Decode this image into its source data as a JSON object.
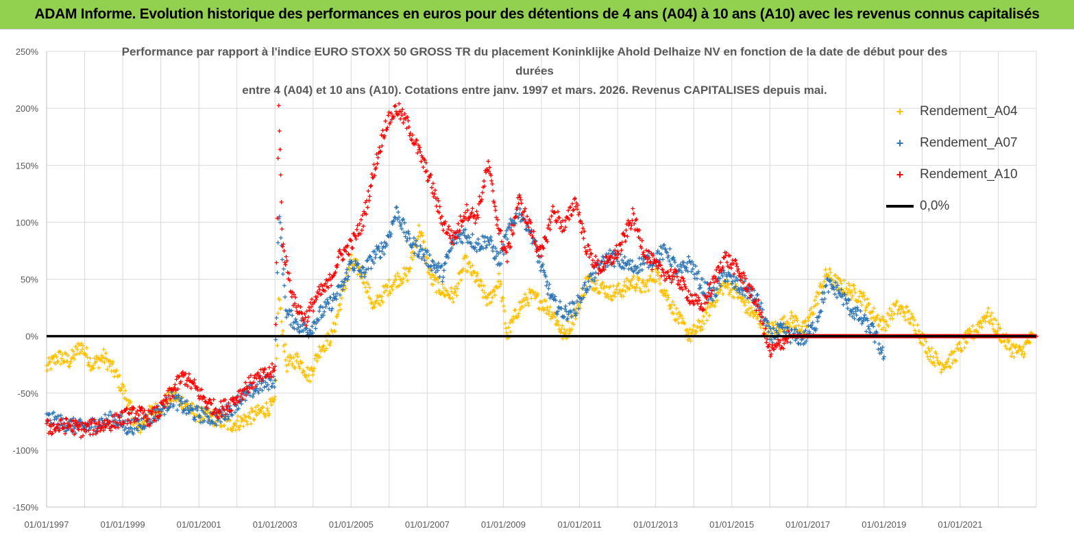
{
  "banner": {
    "title": "ADAM Informe. Evolution historique des performances en euros pour des détentions de 4 ans (A04) à 10 ans (A10) avec les revenus connus capitalisés"
  },
  "colors": {
    "banner_bg": "#92d050",
    "a04": "#ffc000",
    "a07": "#2e75b6",
    "a10": "#ff0000",
    "zero_line": "#000000"
  },
  "chart_data": {
    "type": "scatter",
    "title_lines": [
      "Performance par rapport à l'indice EURO STOXX 50 GROSS TR  du placement Koninklijke Ahold Delhaize NV en  fonction de la date de début pour des durées",
      "entre 4 (A04) et 10 ans (A10). Cotations entre janv. 1997 et mars. 2026. Revenus CAPITALISES depuis mai."
    ],
    "xlabel": "",
    "ylabel": "",
    "xlim": [
      1997.0,
      2023.0
    ],
    "ylim": [
      -150,
      250
    ],
    "y_ticks": [
      250,
      200,
      150,
      100,
      50,
      0,
      -50,
      -100,
      -150
    ],
    "y_tick_labels": [
      "250%",
      "200%",
      "150%",
      "100%",
      "50%",
      "0%",
      "-50%",
      "-100%",
      "-150%"
    ],
    "x_ticks": [
      1997,
      1999,
      2001,
      2003,
      2005,
      2007,
      2009,
      2011,
      2013,
      2015,
      2017,
      2019,
      2021
    ],
    "x_tick_labels": [
      "01/01/1997",
      "01/01/1999",
      "01/01/2001",
      "01/01/2003",
      "01/01/2005",
      "01/01/2007",
      "01/01/2009",
      "01/01/2011",
      "01/01/2013",
      "01/01/2015",
      "01/01/2017",
      "01/01/2019",
      "01/01/2021"
    ],
    "grid": true,
    "legend_position": "right",
    "series": [
      {
        "name": "Rendement_A04",
        "marker": "+",
        "color": "#ffc000",
        "x": [
          1997.0,
          1997.3,
          1997.6,
          1997.9,
          1998.2,
          1998.5,
          1998.8,
          1999.1,
          1999.4,
          1999.7,
          2000.0,
          2000.3,
          2000.6,
          2000.9,
          2001.2,
          2001.5,
          2001.8,
          2002.1,
          2002.4,
          2002.7,
          2003.0,
          2003.1,
          2003.3,
          2003.6,
          2003.9,
          2004.2,
          2004.5,
          2004.8,
          2005.0,
          2005.3,
          2005.6,
          2005.9,
          2006.2,
          2006.5,
          2006.8,
          2007.1,
          2007.4,
          2007.7,
          2008.0,
          2008.3,
          2008.6,
          2008.9,
          2009.1,
          2009.4,
          2009.7,
          2010.0,
          2010.3,
          2010.6,
          2010.9,
          2011.2,
          2011.5,
          2011.8,
          2012.1,
          2012.4,
          2012.7,
          2013.0,
          2013.3,
          2013.6,
          2013.9,
          2014.2,
          2014.5,
          2014.8,
          2015.1,
          2015.4,
          2015.7,
          2016.0,
          2016.3,
          2016.6,
          2016.9,
          2017.2,
          2017.5,
          2017.8,
          2018.1,
          2018.4,
          2018.7,
          2019.0,
          2019.3,
          2019.6,
          2019.9,
          2020.2,
          2020.5,
          2020.8,
          2021.1,
          2021.4,
          2021.7,
          2022.0,
          2022.3,
          2022.6,
          2022.9
        ],
        "values": [
          -28,
          -18,
          -22,
          -8,
          -25,
          -18,
          -32,
          -55,
          -82,
          -68,
          -62,
          -52,
          -58,
          -68,
          -70,
          -73,
          -78,
          -75,
          -70,
          -65,
          -60,
          35,
          -25,
          -20,
          -35,
          -10,
          0,
          40,
          65,
          55,
          25,
          40,
          50,
          55,
          95,
          50,
          40,
          35,
          65,
          50,
          30,
          50,
          0,
          25,
          35,
          30,
          20,
          0,
          20,
          50,
          45,
          38,
          40,
          48,
          42,
          55,
          35,
          15,
          0,
          10,
          30,
          45,
          40,
          25,
          15,
          5,
          10,
          15,
          5,
          30,
          55,
          45,
          40,
          35,
          20,
          10,
          25,
          20,
          5,
          -15,
          -25,
          -20,
          -5,
          5,
          20,
          5,
          -10,
          -15,
          0
        ]
      },
      {
        "name": "Rendement_A07",
        "marker": "+",
        "color": "#2e75b6",
        "x": [
          1997.0,
          1997.3,
          1997.6,
          1997.9,
          1998.2,
          1998.5,
          1998.8,
          1999.1,
          1999.4,
          1999.7,
          2000.0,
          2000.3,
          2000.6,
          2000.9,
          2001.2,
          2001.5,
          2001.8,
          2002.1,
          2002.4,
          2002.7,
          2003.0,
          2003.1,
          2003.3,
          2003.6,
          2003.9,
          2004.2,
          2004.5,
          2004.8,
          2005.0,
          2005.3,
          2005.6,
          2005.9,
          2006.2,
          2006.5,
          2006.8,
          2007.1,
          2007.4,
          2007.7,
          2008.0,
          2008.3,
          2008.6,
          2008.9,
          2009.1,
          2009.4,
          2009.7,
          2010.0,
          2010.3,
          2010.6,
          2010.9,
          2011.2,
          2011.5,
          2011.8,
          2012.1,
          2012.4,
          2012.7,
          2013.0,
          2013.3,
          2013.6,
          2013.9,
          2014.2,
          2014.5,
          2014.8,
          2015.1,
          2015.4,
          2015.7,
          2016.0,
          2016.3,
          2016.6,
          2016.9,
          2017.2,
          2017.5,
          2017.8,
          2018.1,
          2018.4,
          2018.7,
          2019.0
        ],
        "values": [
          -72,
          -75,
          -78,
          -80,
          -78,
          -75,
          -72,
          -80,
          -78,
          -72,
          -65,
          -55,
          -62,
          -68,
          -70,
          -72,
          -65,
          -55,
          -48,
          -42,
          -38,
          110,
          20,
          10,
          5,
          20,
          30,
          45,
          65,
          55,
          70,
          80,
          110,
          85,
          75,
          65,
          55,
          85,
          90,
          80,
          85,
          65,
          90,
          110,
          95,
          60,
          30,
          20,
          25,
          45,
          60,
          70,
          65,
          60,
          65,
          70,
          75,
          55,
          65,
          45,
          35,
          55,
          45,
          40,
          30,
          0,
          5,
          0,
          -2,
          10,
          45,
          40,
          25,
          15,
          5,
          -18
        ]
      },
      {
        "name": "Rendement_A10",
        "marker": "+",
        "color": "#ff0000",
        "x": [
          1997.0,
          1997.3,
          1997.6,
          1997.9,
          1998.2,
          1998.5,
          1998.8,
          1999.1,
          1999.4,
          1999.7,
          2000.0,
          2000.3,
          2000.6,
          2000.9,
          2001.2,
          2001.5,
          2001.8,
          2002.1,
          2002.4,
          2002.7,
          2003.0,
          2003.1,
          2003.2,
          2003.5,
          2003.8,
          2004.1,
          2004.4,
          2004.7,
          2005.0,
          2005.3,
          2005.6,
          2005.9,
          2006.2,
          2006.5,
          2006.8,
          2007.1,
          2007.4,
          2007.7,
          2008.0,
          2008.3,
          2008.6,
          2008.9,
          2009.1,
          2009.4,
          2009.7,
          2010.0,
          2010.3,
          2010.6,
          2010.9,
          2011.2,
          2011.5,
          2011.8,
          2012.1,
          2012.4,
          2012.7,
          2013.0,
          2013.3,
          2013.6,
          2013.9,
          2014.2,
          2014.5,
          2014.8,
          2015.1,
          2015.4,
          2015.7,
          2016.0,
          2016.5,
          2017.0,
          2017.5,
          2018.0,
          2018.5,
          2019.0,
          2019.5,
          2020.0,
          2020.5,
          2021.0,
          2021.5,
          2022.0,
          2022.5,
          2023.0
        ],
        "values": [
          -80,
          -80,
          -78,
          -82,
          -80,
          -78,
          -75,
          -70,
          -68,
          -72,
          -65,
          -48,
          -35,
          -45,
          -58,
          -65,
          -60,
          -50,
          -40,
          -35,
          -30,
          200,
          80,
          30,
          15,
          35,
          45,
          70,
          80,
          100,
          145,
          185,
          200,
          185,
          160,
          135,
          100,
          85,
          110,
          105,
          150,
          90,
          70,
          120,
          95,
          70,
          110,
          95,
          120,
          75,
          60,
          65,
          80,
          105,
          75,
          60,
          55,
          50,
          35,
          25,
          45,
          70,
          60,
          45,
          25,
          -15,
          0,
          0,
          0,
          0,
          0,
          0,
          0,
          0,
          0,
          0,
          0,
          0,
          0,
          0
        ]
      },
      {
        "name": "0,0%",
        "marker": "line",
        "color": "#000000",
        "x": [
          1997.0,
          2023.0
        ],
        "values": [
          0,
          0
        ]
      }
    ]
  }
}
